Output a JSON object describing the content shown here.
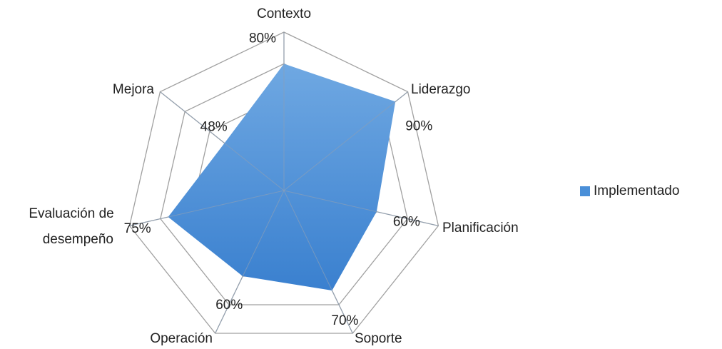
{
  "chart_data": {
    "type": "radar",
    "categories": [
      "Contexto",
      "Liderazgo",
      "Planificación",
      "Soporte",
      "Operación",
      "Evaluación de desempeño",
      "Mejora"
    ],
    "series": [
      {
        "name": "Implementado",
        "color": "#4a8fd8",
        "values": [
          80,
          90,
          60,
          70,
          60,
          75,
          48
        ],
        "value_labels": [
          "80%",
          "90%",
          "60%",
          "70%",
          "60%",
          "75%",
          "48%"
        ]
      }
    ],
    "ylim": [
      0,
      100
    ],
    "yticks": [
      0,
      20,
      40,
      60,
      80,
      100
    ],
    "grid": true,
    "legend": "right"
  }
}
